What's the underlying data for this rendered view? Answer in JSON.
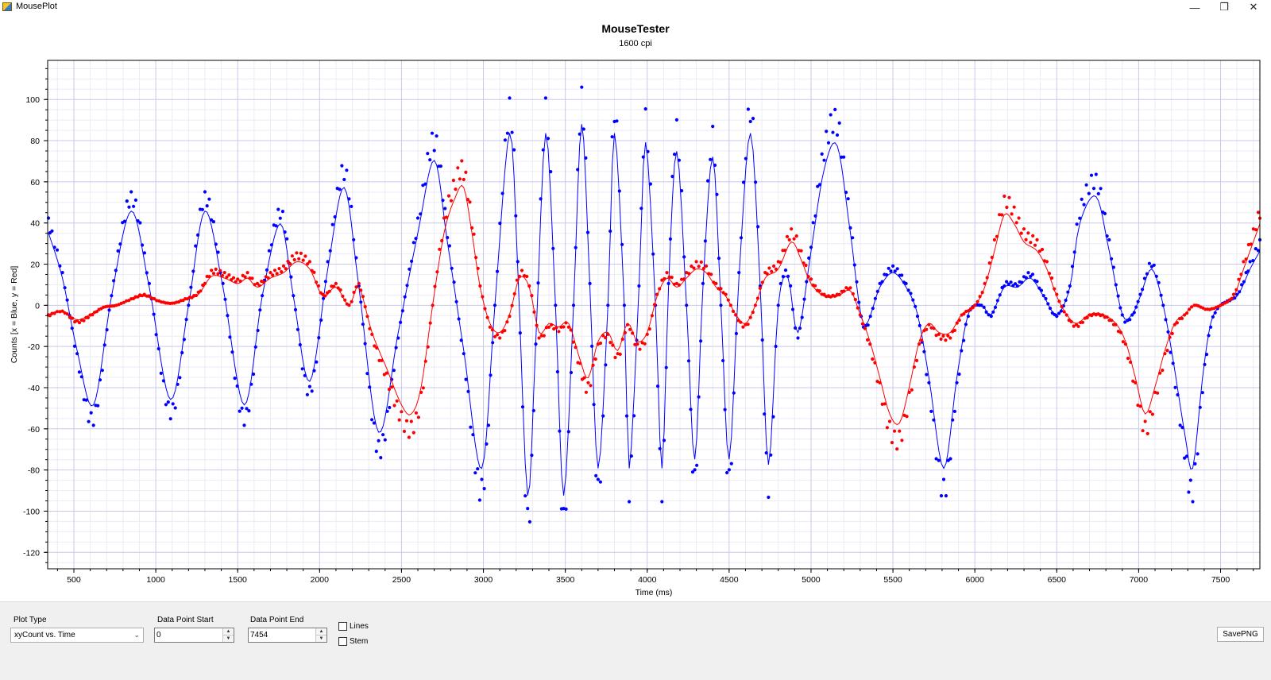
{
  "window": {
    "title": "MousePlot"
  },
  "controls": {
    "minimize": "—",
    "maximize": "❐",
    "close": "✕"
  },
  "chart_data": {
    "type": "scatter",
    "title": "MouseTester",
    "subtitle": "1600 cpi",
    "xlabel": "Time (ms)",
    "ylabel": "Counts [x = Blue, y = Red]",
    "xlim": [
      340,
      7740
    ],
    "ylim": [
      -128,
      119
    ],
    "xticks": [
      500,
      1000,
      1500,
      2000,
      2500,
      3000,
      3500,
      4000,
      4500,
      5000,
      5500,
      6000,
      6500,
      7000,
      7500
    ],
    "yticks": [
      -120,
      -100,
      -80,
      -60,
      -40,
      -20,
      0,
      20,
      40,
      60,
      80,
      100
    ],
    "grid": true,
    "series": [
      {
        "color": "#0000ff",
        "points": [
          [
            345,
            40
          ],
          [
            430,
            15
          ],
          [
            520,
            -25
          ],
          [
            620,
            -55
          ],
          [
            730,
            5
          ],
          [
            850,
            52
          ],
          [
            960,
            10
          ],
          [
            1090,
            -52
          ],
          [
            1200,
            0
          ],
          [
            1300,
            52
          ],
          [
            1410,
            10
          ],
          [
            1540,
            -55
          ],
          [
            1650,
            5
          ],
          [
            1760,
            45
          ],
          [
            1840,
            5
          ],
          [
            1940,
            -42
          ],
          [
            2050,
            20
          ],
          [
            2150,
            65
          ],
          [
            2240,
            10
          ],
          [
            2360,
            -70
          ],
          [
            2480,
            -15
          ],
          [
            2600,
            40
          ],
          [
            2700,
            80
          ],
          [
            2780,
            35
          ],
          [
            2880,
            -25
          ],
          [
            2990,
            -90
          ],
          [
            3070,
            0
          ],
          [
            3160,
            95
          ],
          [
            3210,
            20
          ],
          [
            3270,
            -105
          ],
          [
            3320,
            -20
          ],
          [
            3380,
            95
          ],
          [
            3440,
            0
          ],
          [
            3490,
            -105
          ],
          [
            3550,
            0
          ],
          [
            3600,
            100
          ],
          [
            3650,
            10
          ],
          [
            3700,
            -90
          ],
          [
            3760,
            0
          ],
          [
            3800,
            95
          ],
          [
            3860,
            0
          ],
          [
            3890,
            -90
          ],
          [
            3950,
            10
          ],
          [
            3990,
            90
          ],
          [
            4050,
            0
          ],
          [
            4090,
            -90
          ],
          [
            4130,
            10
          ],
          [
            4180,
            85
          ],
          [
            4240,
            0
          ],
          [
            4290,
            -85
          ],
          [
            4340,
            10
          ],
          [
            4400,
            82
          ],
          [
            4450,
            0
          ],
          [
            4500,
            -85
          ],
          [
            4560,
            15
          ],
          [
            4630,
            95
          ],
          [
            4690,
            10
          ],
          [
            4740,
            -88
          ],
          [
            4800,
            0
          ],
          [
            4860,
            15
          ],
          [
            4920,
            -15
          ],
          [
            5000,
            30
          ],
          [
            5080,
            75
          ],
          [
            5160,
            88
          ],
          [
            5240,
            40
          ],
          [
            5320,
            -10
          ],
          [
            5420,
            10
          ],
          [
            5500,
            18
          ],
          [
            5580,
            10
          ],
          [
            5650,
            -5
          ],
          [
            5720,
            -40
          ],
          [
            5810,
            -90
          ],
          [
            5890,
            -40
          ],
          [
            5960,
            -5
          ],
          [
            6040,
            0
          ],
          [
            6100,
            -5
          ],
          [
            6180,
            10
          ],
          [
            6260,
            10
          ],
          [
            6340,
            15
          ],
          [
            6420,
            5
          ],
          [
            6500,
            -5
          ],
          [
            6580,
            10
          ],
          [
            6640,
            45
          ],
          [
            6740,
            60
          ],
          [
            6820,
            30
          ],
          [
            6900,
            -5
          ],
          [
            6960,
            -5
          ],
          [
            7010,
            5
          ],
          [
            7080,
            20
          ],
          [
            7150,
            0
          ],
          [
            7210,
            -30
          ],
          [
            7280,
            -70
          ],
          [
            7330,
            -90
          ],
          [
            7390,
            -40
          ],
          [
            7440,
            -10
          ],
          [
            7500,
            0
          ],
          [
            7600,
            5
          ],
          [
            7680,
            20
          ],
          [
            7740,
            30
          ]
        ]
      },
      {
        "color": "#ff0000",
        "points": [
          [
            345,
            -5
          ],
          [
            430,
            -3
          ],
          [
            520,
            -8
          ],
          [
            600,
            -5
          ],
          [
            680,
            -1
          ],
          [
            760,
            0
          ],
          [
            850,
            3
          ],
          [
            930,
            5
          ],
          [
            1020,
            2
          ],
          [
            1100,
            1
          ],
          [
            1180,
            3
          ],
          [
            1260,
            6
          ],
          [
            1340,
            16
          ],
          [
            1420,
            15
          ],
          [
            1500,
            12
          ],
          [
            1560,
            15
          ],
          [
            1620,
            10
          ],
          [
            1700,
            15
          ],
          [
            1780,
            18
          ],
          [
            1860,
            24
          ],
          [
            1940,
            20
          ],
          [
            2020,
            5
          ],
          [
            2100,
            10
          ],
          [
            2180,
            0
          ],
          [
            2240,
            10
          ],
          [
            2320,
            -15
          ],
          [
            2410,
            -35
          ],
          [
            2500,
            -55
          ],
          [
            2560,
            -60
          ],
          [
            2620,
            -45
          ],
          [
            2690,
            0
          ],
          [
            2760,
            40
          ],
          [
            2830,
            60
          ],
          [
            2880,
            65
          ],
          [
            2930,
            40
          ],
          [
            2980,
            10
          ],
          [
            3040,
            -10
          ],
          [
            3100,
            -15
          ],
          [
            3160,
            -5
          ],
          [
            3220,
            15
          ],
          [
            3280,
            10
          ],
          [
            3340,
            -15
          ],
          [
            3400,
            -10
          ],
          [
            3460,
            -12
          ],
          [
            3520,
            -10
          ],
          [
            3590,
            -30
          ],
          [
            3640,
            -40
          ],
          [
            3700,
            -20
          ],
          [
            3760,
            -15
          ],
          [
            3820,
            -25
          ],
          [
            3880,
            -10
          ],
          [
            3940,
            -20
          ],
          [
            4000,
            -15
          ],
          [
            4060,
            5
          ],
          [
            4120,
            15
          ],
          [
            4180,
            10
          ],
          [
            4240,
            15
          ],
          [
            4300,
            20
          ],
          [
            4360,
            18
          ],
          [
            4420,
            10
          ],
          [
            4480,
            5
          ],
          [
            4540,
            -5
          ],
          [
            4600,
            -10
          ],
          [
            4660,
            0
          ],
          [
            4720,
            15
          ],
          [
            4800,
            20
          ],
          [
            4880,
            35
          ],
          [
            4940,
            25
          ],
          [
            5000,
            12
          ],
          [
            5080,
            5
          ],
          [
            5160,
            5
          ],
          [
            5240,
            8
          ],
          [
            5300,
            -5
          ],
          [
            5360,
            -20
          ],
          [
            5420,
            -40
          ],
          [
            5480,
            -60
          ],
          [
            5540,
            -65
          ],
          [
            5600,
            -45
          ],
          [
            5660,
            -20
          ],
          [
            5720,
            -10
          ],
          [
            5780,
            -15
          ],
          [
            5850,
            -15
          ],
          [
            5920,
            -5
          ],
          [
            6000,
            0
          ],
          [
            6060,
            10
          ],
          [
            6120,
            30
          ],
          [
            6180,
            50
          ],
          [
            6240,
            45
          ],
          [
            6300,
            35
          ],
          [
            6380,
            30
          ],
          [
            6440,
            20
          ],
          [
            6500,
            5
          ],
          [
            6560,
            -5
          ],
          [
            6620,
            -10
          ],
          [
            6700,
            -5
          ],
          [
            6780,
            -5
          ],
          [
            6860,
            -10
          ],
          [
            6920,
            -20
          ],
          [
            6980,
            -40
          ],
          [
            7040,
            -60
          ],
          [
            7100,
            -45
          ],
          [
            7160,
            -25
          ],
          [
            7220,
            -10
          ],
          [
            7280,
            -5
          ],
          [
            7340,
            0
          ],
          [
            7420,
            -2
          ],
          [
            7500,
            0
          ],
          [
            7580,
            5
          ],
          [
            7640,
            20
          ],
          [
            7700,
            35
          ],
          [
            7740,
            45
          ]
        ]
      }
    ]
  },
  "panel": {
    "plot_type": {
      "label": "Plot Type",
      "value": "xyCount vs. Time"
    },
    "data_point_start": {
      "label": "Data Point Start",
      "value": "0"
    },
    "data_point_end": {
      "label": "Data Point End",
      "value": "7454"
    },
    "lines": {
      "label": "Lines",
      "checked": false
    },
    "stem": {
      "label": "Stem",
      "checked": false
    },
    "save_button": "SavePNG"
  }
}
